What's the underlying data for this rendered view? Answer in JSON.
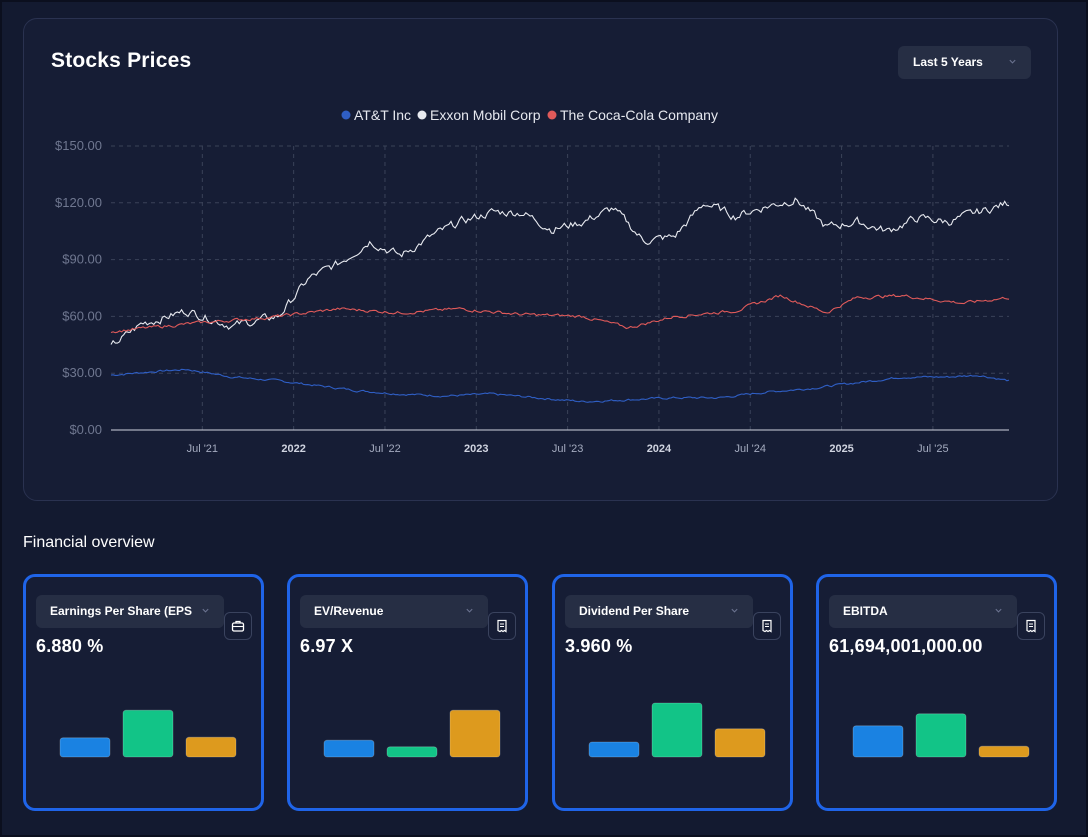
{
  "chart": {
    "title": "Stocks Prices",
    "range_label": "Last 5 Years",
    "legend": [
      {
        "name": "AT&T Inc",
        "color": "#2f5ec4"
      },
      {
        "name": "Exxon Mobil Corp",
        "color": "#e8eaf0"
      },
      {
        "name": "The Coca-Cola Company",
        "color": "#e05a5a"
      }
    ]
  },
  "chart_data": {
    "type": "line",
    "ylim": [
      0,
      150
    ],
    "y_ticks": [
      "$0.00",
      "$30.00",
      "$60.00",
      "$90.00",
      "$120.00",
      "$150.00"
    ],
    "x_ticks": [
      "Jul '21",
      "2022",
      "Jul '22",
      "2023",
      "Jul '23",
      "2024",
      "Jul '24",
      "2025",
      "Jul '25"
    ],
    "x_range": [
      "2021-01",
      "2025-12"
    ],
    "grid": true,
    "legend_position": "top-center",
    "series": [
      {
        "name": "AT&T Inc",
        "color": "#2f5ec4",
        "points": [
          [
            "2021-01",
            29
          ],
          [
            "2021-04",
            31
          ],
          [
            "2021-06",
            32
          ],
          [
            "2021-09",
            28
          ],
          [
            "2021-12",
            26
          ],
          [
            "2022-02",
            24
          ],
          [
            "2022-05",
            21
          ],
          [
            "2022-08",
            19
          ],
          [
            "2022-11",
            18
          ],
          [
            "2023-02",
            19
          ],
          [
            "2023-05",
            17
          ],
          [
            "2023-08",
            15
          ],
          [
            "2023-11",
            16
          ],
          [
            "2024-02",
            17
          ],
          [
            "2024-05",
            17
          ],
          [
            "2024-08",
            20
          ],
          [
            "2024-11",
            22
          ],
          [
            "2025-02",
            25
          ],
          [
            "2025-05",
            28
          ],
          [
            "2025-08",
            28
          ],
          [
            "2025-10",
            29
          ],
          [
            "2025-12",
            26
          ]
        ]
      },
      {
        "name": "Exxon Mobil Corp",
        "color": "#e8eaf0",
        "points": [
          [
            "2021-01",
            44
          ],
          [
            "2021-03",
            56
          ],
          [
            "2021-06",
            63
          ],
          [
            "2021-09",
            55
          ],
          [
            "2021-12",
            60
          ],
          [
            "2022-02",
            80
          ],
          [
            "2022-04",
            88
          ],
          [
            "2022-06",
            100
          ],
          [
            "2022-08",
            92
          ],
          [
            "2022-10",
            102
          ],
          [
            "2022-12",
            110
          ],
          [
            "2023-02",
            115
          ],
          [
            "2023-04",
            115
          ],
          [
            "2023-06",
            106
          ],
          [
            "2023-08",
            110
          ],
          [
            "2023-10",
            117
          ],
          [
            "2023-12",
            100
          ],
          [
            "2024-02",
            102
          ],
          [
            "2024-04",
            120
          ],
          [
            "2024-06",
            113
          ],
          [
            "2024-08",
            118
          ],
          [
            "2024-10",
            122
          ],
          [
            "2024-12",
            107
          ],
          [
            "2025-02",
            110
          ],
          [
            "2025-04",
            105
          ],
          [
            "2025-06",
            112
          ],
          [
            "2025-08",
            110
          ],
          [
            "2025-10",
            115
          ],
          [
            "2025-12",
            120
          ]
        ]
      },
      {
        "name": "The Coca-Cola Company",
        "color": "#e05a5a",
        "points": [
          [
            "2021-01",
            52
          ],
          [
            "2021-06",
            56
          ],
          [
            "2021-12",
            60
          ],
          [
            "2022-04",
            64
          ],
          [
            "2022-08",
            62
          ],
          [
            "2022-12",
            64
          ],
          [
            "2023-04",
            61
          ],
          [
            "2023-08",
            60
          ],
          [
            "2023-11",
            54
          ],
          [
            "2024-02",
            60
          ],
          [
            "2024-06",
            63
          ],
          [
            "2024-09",
            71
          ],
          [
            "2024-12",
            62
          ],
          [
            "2025-02",
            70
          ],
          [
            "2025-05",
            71
          ],
          [
            "2025-09",
            67
          ],
          [
            "2025-12",
            70
          ]
        ]
      }
    ]
  },
  "overview": {
    "title": "Financial overview",
    "cards": [
      {
        "select_label": "Earnings Per Share (EPS)",
        "value": "6.880 %",
        "icon": "briefcase-icon",
        "bars": [
          0.32,
          0.78,
          0.33
        ]
      },
      {
        "select_label": "EV/Revenue",
        "value": "6.97 X",
        "icon": "receipt-icon",
        "bars": [
          0.28,
          0.17,
          0.78
        ]
      },
      {
        "select_label": "Dividend Per Share",
        "value": "3.960 %",
        "icon": "receipt-icon",
        "bars": [
          0.25,
          0.9,
          0.47
        ]
      },
      {
        "select_label": "EBITDA",
        "value": "61,694,001,000.00",
        "icon": "receipt-icon",
        "bars": [
          0.52,
          0.72,
          0.18
        ]
      }
    ],
    "bar_colors": [
      "#1a82e2",
      "#12c487",
      "#dd9a1e"
    ]
  }
}
